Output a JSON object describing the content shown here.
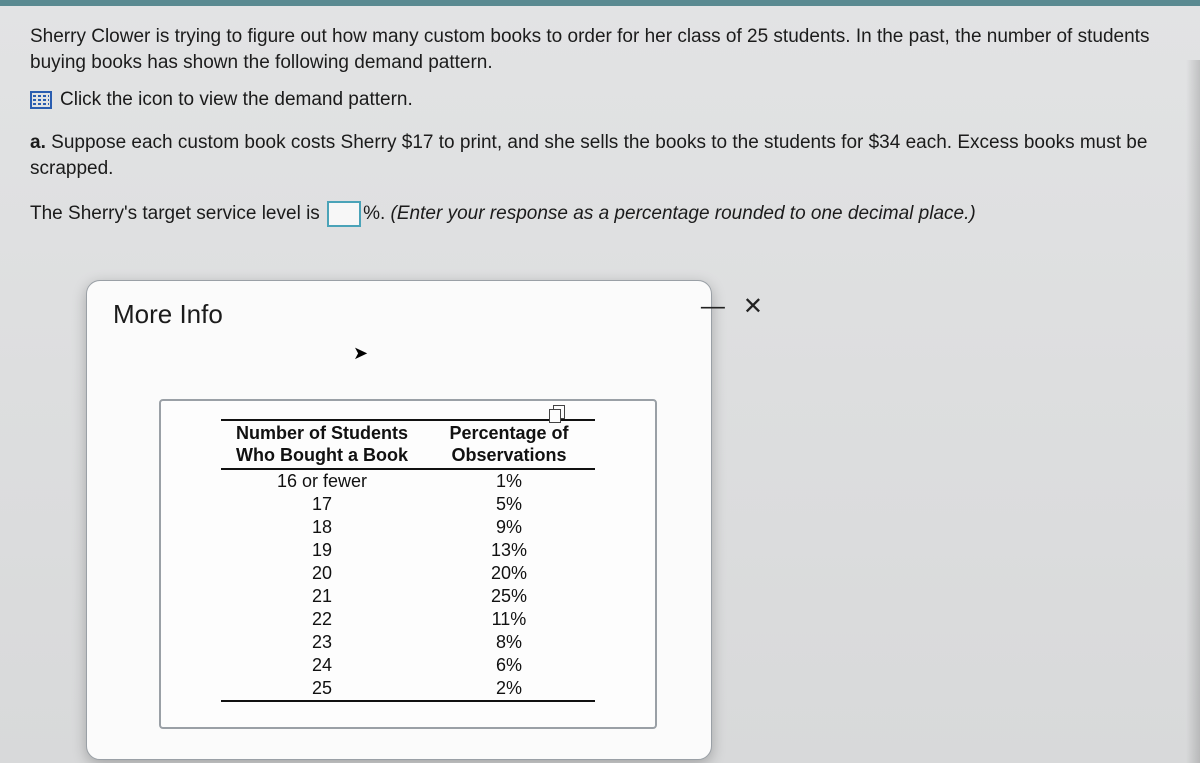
{
  "intro": "Sherry Clower is trying to figure out how many custom books to order for her class of 25 students. In the past, the number of students buying books has shown the following demand pattern.",
  "link_text": "Click the icon to view the demand pattern.",
  "part_a_label": "a.",
  "part_a_text": "Suppose each custom book costs Sherry $17 to print, and she sells the books to the students for $34 each. Excess books must be scrapped.",
  "answer_prefix": "The Sherry's target service level is",
  "answer_suffix_unit": "%.",
  "answer_hint": "(Enter your response as a percentage rounded to one decimal place.)",
  "popup": {
    "title": "More Info",
    "minimize": "—",
    "close": "✕",
    "table": {
      "col1_header_line1": "Number of Students",
      "col1_header_line2": "Who Bought a Book",
      "col2_header_line1": "Percentage of",
      "col2_header_line2": "Observations",
      "rows": [
        {
          "c1": "16 or fewer",
          "c2": "1%"
        },
        {
          "c1": "17",
          "c2": "5%"
        },
        {
          "c1": "18",
          "c2": "9%"
        },
        {
          "c1": "19",
          "c2": "13%"
        },
        {
          "c1": "20",
          "c2": "20%"
        },
        {
          "c1": "21",
          "c2": "25%"
        },
        {
          "c1": "22",
          "c2": "11%"
        },
        {
          "c1": "23",
          "c2": "8%"
        },
        {
          "c1": "24",
          "c2": "6%"
        },
        {
          "c1": "25",
          "c2": "2%"
        }
      ]
    }
  }
}
